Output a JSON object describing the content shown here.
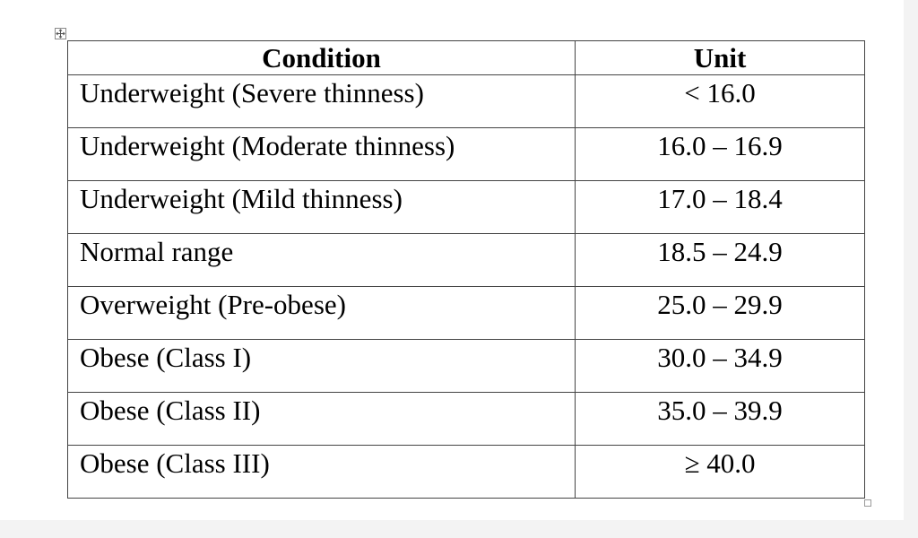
{
  "table": {
    "headers": {
      "condition": "Condition",
      "unit": "Unit"
    },
    "rows": [
      {
        "condition": "Underweight (Severe thinness)",
        "unit": "< 16.0"
      },
      {
        "condition": "Underweight (Moderate thinness)",
        "unit": "16.0 – 16.9"
      },
      {
        "condition": "Underweight (Mild thinness)",
        "unit": "17.0 – 18.4"
      },
      {
        "condition": "Normal range",
        "unit": "18.5 – 24.9"
      },
      {
        "condition": "Overweight (Pre-obese)",
        "unit": "25.0 – 29.9"
      },
      {
        "condition": "Obese (Class I)",
        "unit": "30.0 – 34.9"
      },
      {
        "condition": "Obese (Class II)",
        "unit": "35.0 – 39.9"
      },
      {
        "condition": "Obese (Class III)",
        "unit": "≥ 40.0"
      }
    ]
  },
  "icons": {
    "table_move_handle": "move-cross-icon",
    "table_resize_handle": "resize-square-icon"
  },
  "colors": {
    "table_border": "#444444",
    "text": "#000000",
    "page_background": "#ffffff"
  }
}
